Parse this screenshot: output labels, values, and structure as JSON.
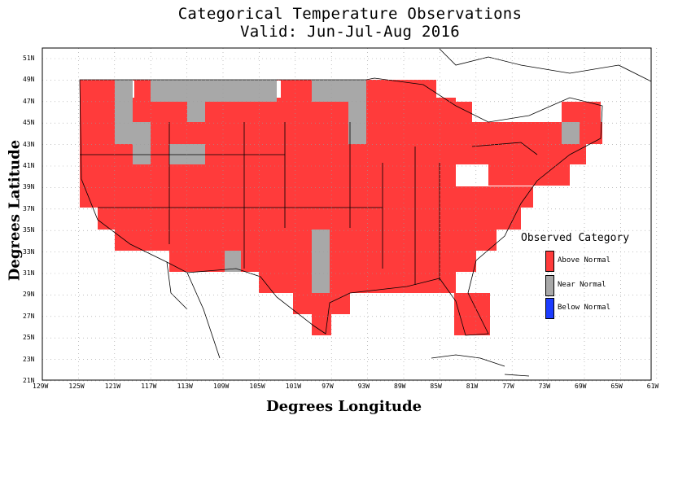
{
  "title_line1": "Categorical Temperature Observations",
  "title_line2": "Valid: Jun-Jul-Aug 2016",
  "x_axis_label": "Degrees Longitude",
  "y_axis_label": "Degrees Latitude",
  "lat_ticks": [
    "51N",
    "49N",
    "47N",
    "45N",
    "43N",
    "41N",
    "39N",
    "37N",
    "35N",
    "33N",
    "31N",
    "29N",
    "27N",
    "25N",
    "23N",
    "21N"
  ],
  "lon_ticks": [
    "129W",
    "125W",
    "121W",
    "117W",
    "113W",
    "109W",
    "105W",
    "101W",
    "97W",
    "93W",
    "89W",
    "85W",
    "81W",
    "77W",
    "73W",
    "69W",
    "65W",
    "61W"
  ],
  "legend": {
    "title": "Observed Category",
    "items": [
      {
        "label": "Above Normal",
        "color": "#ff3b3b"
      },
      {
        "label": "Near Normal",
        "color": "#a8a8a8"
      },
      {
        "label": "Below Normal",
        "color": "#1c3cff"
      }
    ]
  },
  "colors": {
    "above": "#ff3b3b",
    "near": "#a8a8a8",
    "below": "#1c3cff",
    "grid": "#9a9a9a",
    "background": "#ffffff"
  }
}
